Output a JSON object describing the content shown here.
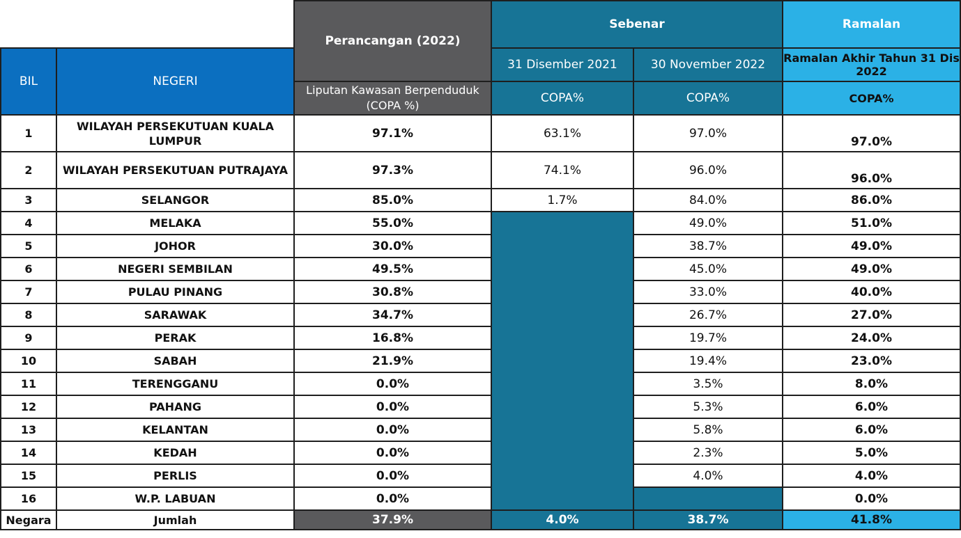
{
  "header": {
    "bil": "BIL",
    "negeri": "NEGERI",
    "perancangan": "Perancangan (2022)",
    "perancangan_sub": "Liputan Kawasan Berpenduduk (COPA %)",
    "sebenar": "Sebenar",
    "sebenar_date1": "31 Disember 2021",
    "sebenar_date2": "30 November 2022",
    "sebenar_copa1": "COPA%",
    "sebenar_copa2": "COPA%",
    "ramalan": "Ramalan",
    "ramalan_sub": "Ramalan Akhir Tahun 31 Dis 2022",
    "ramalan_copa": "COPA%"
  },
  "rows": [
    {
      "bil": "1",
      "negeri": "WILAYAH PERSEKUTUAN KUALA LUMPUR",
      "perancangan": "97.1%",
      "dis2021": "63.1%",
      "nov2022": "97.0%",
      "ramalan": "97.0%"
    },
    {
      "bil": "2",
      "negeri": "WILAYAH PERSEKUTUAN PUTRAJAYA",
      "perancangan": "97.3%",
      "dis2021": "74.1%",
      "nov2022": "96.0%",
      "ramalan": "96.0%"
    },
    {
      "bil": "3",
      "negeri": "SELANGOR",
      "perancangan": "85.0%",
      "dis2021": "1.7%",
      "nov2022": "84.0%",
      "ramalan": "86.0%"
    },
    {
      "bil": "4",
      "negeri": "MELAKA",
      "perancangan": "55.0%",
      "dis2021": "",
      "nov2022": "49.0%",
      "ramalan": "51.0%"
    },
    {
      "bil": "5",
      "negeri": "JOHOR",
      "perancangan": "30.0%",
      "dis2021": "",
      "nov2022": "38.7%",
      "ramalan": "49.0%"
    },
    {
      "bil": "6",
      "negeri": "NEGERI SEMBILAN",
      "perancangan": "49.5%",
      "dis2021": "",
      "nov2022": "45.0%",
      "ramalan": "49.0%"
    },
    {
      "bil": "7",
      "negeri": "PULAU PINANG",
      "perancangan": "30.8%",
      "dis2021": "",
      "nov2022": "33.0%",
      "ramalan": "40.0%"
    },
    {
      "bil": "8",
      "negeri": "SARAWAK",
      "perancangan": "34.7%",
      "dis2021": "",
      "nov2022": "26.7%",
      "ramalan": "27.0%"
    },
    {
      "bil": "9",
      "negeri": "PERAK",
      "perancangan": "16.8%",
      "dis2021": "",
      "nov2022": "19.7%",
      "ramalan": "24.0%"
    },
    {
      "bil": "10",
      "negeri": "SABAH",
      "perancangan": "21.9%",
      "dis2021": "",
      "nov2022": "19.4%",
      "ramalan": "23.0%"
    },
    {
      "bil": "11",
      "negeri": "TERENGGANU",
      "perancangan": "0.0%",
      "dis2021": "",
      "nov2022": "3.5%",
      "ramalan": "8.0%"
    },
    {
      "bil": "12",
      "negeri": "PAHANG",
      "perancangan": "0.0%",
      "dis2021": "",
      "nov2022": "5.3%",
      "ramalan": "6.0%"
    },
    {
      "bil": "13",
      "negeri": "KELANTAN",
      "perancangan": "0.0%",
      "dis2021": "",
      "nov2022": "5.8%",
      "ramalan": "6.0%"
    },
    {
      "bil": "14",
      "negeri": "KEDAH",
      "perancangan": "0.0%",
      "dis2021": "",
      "nov2022": "2.3%",
      "ramalan": "5.0%"
    },
    {
      "bil": "15",
      "negeri": "PERLIS",
      "perancangan": "0.0%",
      "dis2021": "",
      "nov2022": "4.0%",
      "ramalan": "4.0%"
    },
    {
      "bil": "16",
      "negeri": "W.P. LABUAN",
      "perancangan": "0.0%",
      "dis2021": "",
      "nov2022": "",
      "ramalan": "0.0%"
    }
  ],
  "footer": {
    "bil": "Negara",
    "negeri": "Jumlah",
    "perancangan": "37.9%",
    "dis2021": "4.0%",
    "nov2022": "38.7%",
    "ramalan": "41.8%"
  },
  "colors": {
    "header_blue": "#0b6fc0",
    "header_grey": "#5a5a5c",
    "header_teal": "#177496",
    "header_cyan": "#2bb1e6"
  }
}
